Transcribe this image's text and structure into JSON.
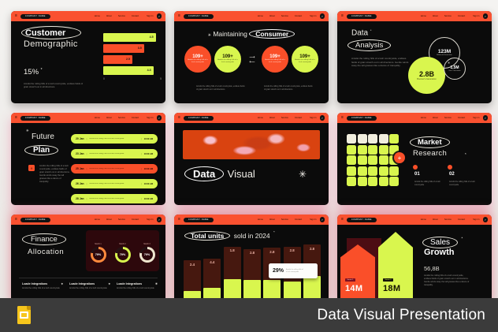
{
  "footer": {
    "title": "Data Visual Presentation",
    "app_icon": "google-slides-icon"
  },
  "nav": {
    "menu_glyph": "≡",
    "company": "COMPANY NAME",
    "items": [
      "Home",
      "About",
      "Service",
      "Contact"
    ],
    "signin": "Sign In",
    "arrow_glyph": "↗"
  },
  "filler": {
    "long": "Amidst the rolling hills of a lush countryside, endless fields of grain stretch out in all directions. Gentle winds sway the tall grasses like a dance of tranquility.",
    "medium": "Amidst the rolling hills of a lush countryside, endless fields of grain stretch out in all directions.",
    "short": "Amidst the rolling hills of a lush countryside"
  },
  "slide1": {
    "title_top": "Customer",
    "title_bottom": "Demographic",
    "stat": "15%",
    "asterisk": "*"
  },
  "slide2": {
    "asterisk": "✳",
    "title_plain": "Maintaining",
    "title_circled": "Consumer"
  },
  "slide3": {
    "title_top": "Data",
    "asterisk": "*",
    "title_circled": "Analysis"
  },
  "slide4": {
    "asterisk": "✳",
    "title_top": "Future",
    "title_circled": "Plan",
    "icon_glyph": "✳"
  },
  "slide5": {
    "title_circled": "Data",
    "title_plain": "Visual",
    "star_glyph": "✳"
  },
  "slide6": {
    "title_circled": "Market",
    "title_plain": "Research",
    "asterisk": "*",
    "plus_glyph": "+",
    "items": [
      {
        "num": "01"
      },
      {
        "num": "02"
      }
    ]
  },
  "slide7": {
    "title_circled": "Finance",
    "title_plain": "Allocation",
    "asterisk": "✳",
    "columns": [
      {
        "heading": "Loade Integrations"
      },
      {
        "heading": "Loade Integrations"
      },
      {
        "heading": "Loade Integrations"
      }
    ]
  },
  "slide8": {
    "title_circled": "Total units",
    "title_plain": "sold in 2024",
    "asterisk": "*"
  },
  "slide9": {
    "title_circled": "Sales",
    "title_plain": "Growth",
    "asterisk": "*",
    "stat": "56,8B"
  },
  "chart_data": [
    {
      "id": "customer-demographic-bars",
      "type": "bar",
      "orientation": "horizontal",
      "values": [
        4.5,
        3.5,
        2.5,
        4.3
      ],
      "labels": [
        "4.5",
        "3.5",
        "2.5",
        "4.3"
      ],
      "colors": [
        "#d9f64e",
        "#fa4f29",
        "#fa4f29",
        "#d9f64e"
      ],
      "xlim": [
        0,
        5
      ],
      "ticks": [
        "0",
        "5"
      ],
      "grid": false
    },
    {
      "id": "maintaining-consumer-stats",
      "type": "stat-circles",
      "values": [
        "109+",
        "109+",
        "109+",
        "109+"
      ],
      "colors": [
        "#fa4f29",
        "#d9f64e",
        "#fa4f29",
        "#d9f64e"
      ]
    },
    {
      "id": "data-analysis-bubbles",
      "type": "bubble",
      "bubbles": [
        {
          "label": "2.8B",
          "sublabel": "Boomer's Generation",
          "style": "filled-lime"
        },
        {
          "label": "123M",
          "sublabel": "Millennial Generation",
          "style": "outline"
        },
        {
          "label": "1.5M",
          "sublabel": "Gen Z Generation",
          "style": "outline"
        }
      ]
    },
    {
      "id": "future-plan-schedule",
      "type": "table",
      "rows": [
        {
          "date": "20 Jan",
          "time": "10:00 AM",
          "color": "lime"
        },
        {
          "date": "23 Jan",
          "time": "10:00 AM",
          "color": "lime"
        },
        {
          "date": "25 Jan",
          "time": "10:00 AM",
          "color": "orange"
        },
        {
          "date": "26 Jan",
          "time": "10:00 AM",
          "color": "lime"
        },
        {
          "date": "28 Jan",
          "time": "10:00 AM",
          "color": "lime"
        }
      ]
    },
    {
      "id": "finance-allocation-donuts",
      "type": "pie",
      "donuts": [
        {
          "label": "Month 1",
          "value": 79,
          "display": "79%",
          "color": "#ff8a3d"
        },
        {
          "label": "Month 2",
          "value": 79,
          "display": "79%",
          "color": "#d9f64e"
        },
        {
          "label": "Month 3",
          "value": 79,
          "display": "79%",
          "color": "#efe6cf"
        }
      ]
    },
    {
      "id": "total-units-2024",
      "type": "bar",
      "values": [
        2.4,
        4.4,
        1.8,
        2.8,
        2.8,
        2.8,
        2.8
      ],
      "labels": [
        "2.4",
        "4.4",
        "1.8",
        "2.8",
        "2.8",
        "2.8",
        "2.8"
      ],
      "top_pct": [
        30,
        27,
        9,
        13,
        11,
        9,
        6
      ],
      "fill_pct": [
        24,
        28,
        42,
        40,
        41,
        38,
        46
      ],
      "bar_color": "#46180f",
      "fill_color": "#d9f64e",
      "tooltip": {
        "value": "29%"
      }
    },
    {
      "id": "sales-growth-arrows",
      "type": "bar",
      "bars": [
        {
          "label": "14M",
          "badge": "Series 1",
          "color": "#fa4f29"
        },
        {
          "label": "18M",
          "badge": "Series 2",
          "color": "#d9f64e"
        }
      ]
    }
  ]
}
